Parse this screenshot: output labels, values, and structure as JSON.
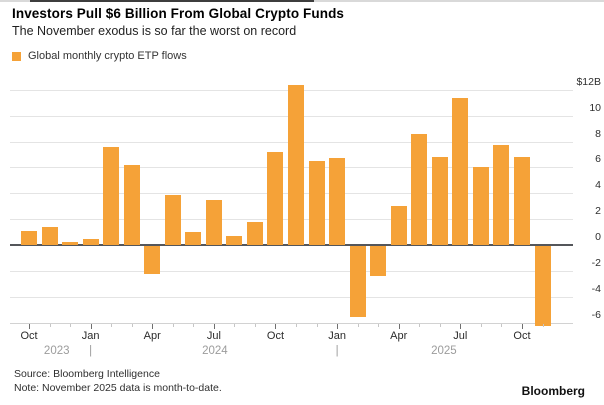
{
  "header": {
    "title": "Investors Pull $6 Billion From Global Crypto Funds",
    "subtitle": "The November exodus is so far the worst on record"
  },
  "legend": {
    "label": "Global monthly crypto ETP flows",
    "color": "#F5A238"
  },
  "chart_data": {
    "type": "bar",
    "title": "Investors Pull $6 Billion From Global Crypto Funds",
    "series_name": "Global monthly crypto ETP flows",
    "unit": "USD billions",
    "x": [
      "Oct 2023",
      "Nov 2023",
      "Dec 2023",
      "Jan 2024",
      "Feb 2024",
      "Mar 2024",
      "Apr 2024",
      "May 2024",
      "Jun 2024",
      "Jul 2024",
      "Aug 2024",
      "Sep 2024",
      "Oct 2024",
      "Nov 2024",
      "Dec 2024",
      "Jan 2025",
      "Feb 2025",
      "Mar 2025",
      "Apr 2025",
      "May 2025",
      "Jun 2025",
      "Jul 2025",
      "Aug 2025",
      "Sep 2025",
      "Oct 2025",
      "Nov 2025"
    ],
    "values": [
      1.1,
      1.4,
      0.2,
      0.5,
      7.6,
      6.2,
      -2.2,
      3.9,
      1.0,
      3.5,
      0.7,
      1.8,
      7.2,
      12.4,
      6.5,
      6.7,
      -5.5,
      -2.3,
      3.0,
      8.6,
      6.8,
      11.4,
      6.0,
      7.7,
      6.8,
      -6.2
    ],
    "ylim": [
      -7,
      13
    ],
    "yticks": [
      12,
      10,
      8,
      6,
      4,
      2,
      0,
      -2,
      -4,
      -6
    ],
    "ytick_labels": [
      "$12B",
      "10",
      "8",
      "6",
      "4",
      "2",
      "0",
      "-2",
      "-4",
      "-6"
    ],
    "xtick_labels": [
      "Oct",
      "Jan",
      "Apr",
      "Jul",
      "Oct",
      "Jan",
      "Apr",
      "Jul",
      "Oct"
    ],
    "xtick_month_indices": [
      0,
      3,
      6,
      9,
      12,
      15,
      18,
      21,
      24
    ],
    "year_row": [
      {
        "type": "label",
        "text": "2023",
        "index": 1.35
      },
      {
        "type": "divider",
        "text": "|",
        "index": 3
      },
      {
        "type": "label",
        "text": "2024",
        "index": 9.05
      },
      {
        "type": "divider",
        "text": "|",
        "index": 15
      },
      {
        "type": "label",
        "text": "2025",
        "index": 20.2
      }
    ],
    "bar_color": "#F5A238",
    "grid": true,
    "legend_position": "top-left",
    "y_axis_side": "right"
  },
  "footer": {
    "source": "Source: Bloomberg Intelligence",
    "note": "Note: November 2025 data is month-to-date.",
    "brand": "Bloomberg"
  }
}
